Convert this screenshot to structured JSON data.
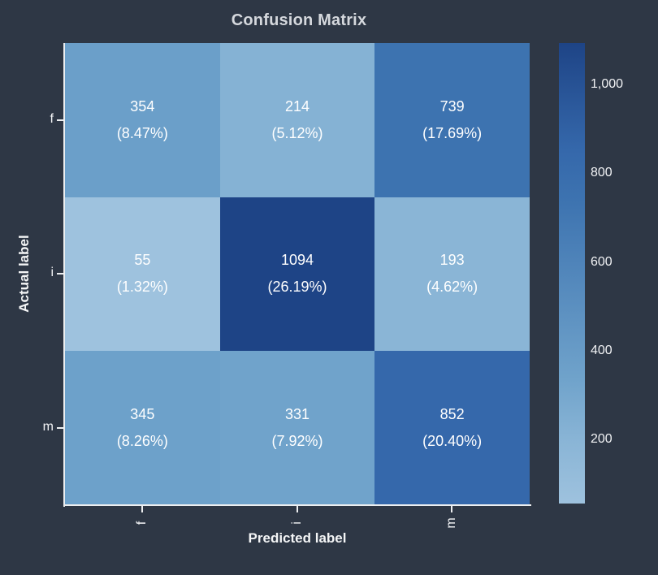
{
  "chart_data": {
    "type": "heatmap",
    "title": "Confusion Matrix",
    "xlabel": "Predicted label",
    "ylabel": "Actual label",
    "x_categories": [
      "f",
      "i",
      "m"
    ],
    "y_categories": [
      "f",
      "i",
      "m"
    ],
    "matrix": [
      [
        354,
        214,
        739
      ],
      [
        55,
        1094,
        193
      ],
      [
        345,
        331,
        852
      ]
    ],
    "percent_matrix": [
      [
        "8.47%",
        "5.12%",
        "17.69%"
      ],
      [
        "1.32%",
        "26.19%",
        "4.62%"
      ],
      [
        "8.26%",
        "7.92%",
        "20.40%"
      ]
    ],
    "cells": [
      {
        "row": "f",
        "col": "f",
        "value": "354",
        "percent": "(8.47%)",
        "color": "#6b9fc9"
      },
      {
        "row": "f",
        "col": "i",
        "value": "214",
        "percent": "(5.12%)",
        "color": "#85b2d4"
      },
      {
        "row": "f",
        "col": "m",
        "value": "739",
        "percent": "(17.69%)",
        "color": "#3d73b0"
      },
      {
        "row": "i",
        "col": "f",
        "value": "55",
        "percent": "(1.32%)",
        "color": "#9ec2de"
      },
      {
        "row": "i",
        "col": "i",
        "value": "1094",
        "percent": "(26.19%)",
        "color": "#1e4486"
      },
      {
        "row": "i",
        "col": "m",
        "value": "193",
        "percent": "(4.62%)",
        "color": "#8ab5d6"
      },
      {
        "row": "m",
        "col": "f",
        "value": "345",
        "percent": "(8.26%)",
        "color": "#6da1ca"
      },
      {
        "row": "m",
        "col": "i",
        "value": "331",
        "percent": "(7.92%)",
        "color": "#70a3cb"
      },
      {
        "row": "m",
        "col": "m",
        "value": "852",
        "percent": "(20.40%)",
        "color": "#3568ab"
      }
    ],
    "colorbar": {
      "ticks": [
        "200",
        "400",
        "600",
        "800",
        "1,000"
      ],
      "min_value": 55,
      "max_value": 1094,
      "color_low": "#9ec2de",
      "color_high": "#1e4486",
      "position": "right"
    },
    "colors": {
      "background": "#2e3745",
      "axis_line": "#eceef0",
      "title_text": "#d5d8dd",
      "tick_text": "#f2f3f5",
      "cell_text": "#ffffff"
    },
    "legend": null,
    "grid": false
  }
}
